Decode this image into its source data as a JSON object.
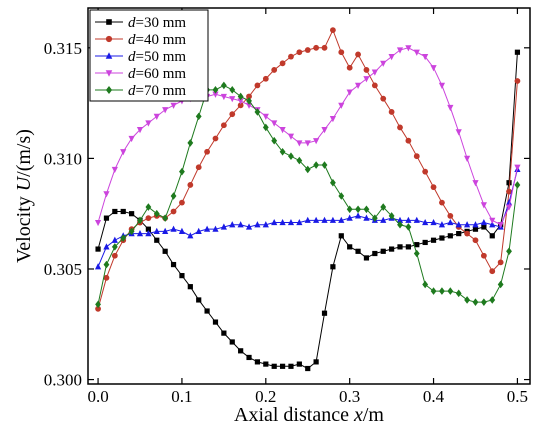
{
  "chart_data": {
    "type": "line",
    "title": "",
    "xlabel": {
      "pre": "Axial distance ",
      "var": "x",
      "post": "/m"
    },
    "ylabel": {
      "pre": "Velocity ",
      "var": "U",
      "post": "/(m/s)"
    },
    "xlim": [
      -0.012,
      0.515
    ],
    "ylim": [
      0.2998,
      0.3168
    ],
    "xticks": [
      0.0,
      0.1,
      0.2,
      0.3,
      0.4,
      0.5
    ],
    "xtick_labels": [
      "0.0",
      "0.1",
      "0.2",
      "0.3",
      "0.4",
      "0.5"
    ],
    "yticks": [
      0.3,
      0.305,
      0.31,
      0.315
    ],
    "ytick_labels": [
      "0.300",
      "0.305",
      "0.310",
      "0.315"
    ],
    "grid": false,
    "legend_position": "top-left",
    "series": [
      {
        "name": {
          "var": "d",
          "rest": "=30 mm"
        },
        "color": "#000000",
        "marker": "square",
        "x": [
          0.0,
          0.01,
          0.02,
          0.03,
          0.04,
          0.05,
          0.06,
          0.07,
          0.08,
          0.09,
          0.1,
          0.11,
          0.12,
          0.13,
          0.14,
          0.15,
          0.16,
          0.17,
          0.18,
          0.19,
          0.2,
          0.21,
          0.22,
          0.23,
          0.24,
          0.25,
          0.26,
          0.27,
          0.28,
          0.29,
          0.3,
          0.31,
          0.32,
          0.33,
          0.34,
          0.35,
          0.36,
          0.37,
          0.38,
          0.39,
          0.4,
          0.41,
          0.42,
          0.43,
          0.44,
          0.45,
          0.46,
          0.47,
          0.48,
          0.49,
          0.5
        ],
        "y": [
          0.3059,
          0.3073,
          0.3076,
          0.3076,
          0.3075,
          0.3072,
          0.3068,
          0.3063,
          0.3058,
          0.3052,
          0.3047,
          0.3042,
          0.3036,
          0.3031,
          0.3026,
          0.3021,
          0.3017,
          0.3013,
          0.301,
          0.3008,
          0.3007,
          0.3006,
          0.3006,
          0.3006,
          0.3007,
          0.3005,
          0.3008,
          0.303,
          0.3051,
          0.3065,
          0.306,
          0.3058,
          0.3055,
          0.3057,
          0.3058,
          0.3059,
          0.306,
          0.306,
          0.3061,
          0.3062,
          0.3063,
          0.3064,
          0.3065,
          0.3066,
          0.3067,
          0.3068,
          0.3069,
          0.3065,
          0.307,
          0.3089,
          0.3148
        ]
      },
      {
        "name": {
          "var": "d",
          "rest": "=40 mm"
        },
        "color": "#c0392b",
        "marker": "circle",
        "x": [
          0.0,
          0.01,
          0.02,
          0.03,
          0.04,
          0.05,
          0.06,
          0.07,
          0.08,
          0.09,
          0.1,
          0.11,
          0.12,
          0.13,
          0.14,
          0.15,
          0.16,
          0.17,
          0.18,
          0.19,
          0.2,
          0.21,
          0.22,
          0.23,
          0.24,
          0.25,
          0.26,
          0.27,
          0.28,
          0.29,
          0.3,
          0.31,
          0.32,
          0.33,
          0.34,
          0.35,
          0.36,
          0.37,
          0.38,
          0.39,
          0.4,
          0.41,
          0.42,
          0.43,
          0.44,
          0.45,
          0.46,
          0.47,
          0.48,
          0.49,
          0.5
        ],
        "y": [
          0.3032,
          0.3046,
          0.3056,
          0.3063,
          0.3068,
          0.3071,
          0.3073,
          0.3074,
          0.3073,
          0.3076,
          0.308,
          0.3088,
          0.3096,
          0.3103,
          0.3109,
          0.3115,
          0.312,
          0.3124,
          0.3128,
          0.3133,
          0.3136,
          0.314,
          0.3143,
          0.3146,
          0.3148,
          0.3149,
          0.315,
          0.315,
          0.3158,
          0.3148,
          0.3141,
          0.3147,
          0.314,
          0.3133,
          0.3127,
          0.3121,
          0.3114,
          0.3108,
          0.3101,
          0.3094,
          0.3087,
          0.308,
          0.3074,
          0.3069,
          0.3066,
          0.3063,
          0.3056,
          0.3049,
          0.3053,
          0.3085,
          0.3135
        ]
      },
      {
        "name": {
          "var": "d",
          "rest": "=50 mm"
        },
        "color": "#1a1ae6",
        "marker": "triangle-up",
        "x": [
          0.0,
          0.01,
          0.02,
          0.03,
          0.04,
          0.05,
          0.06,
          0.07,
          0.08,
          0.09,
          0.1,
          0.11,
          0.12,
          0.13,
          0.14,
          0.15,
          0.16,
          0.17,
          0.18,
          0.19,
          0.2,
          0.21,
          0.22,
          0.23,
          0.24,
          0.25,
          0.26,
          0.27,
          0.28,
          0.29,
          0.3,
          0.31,
          0.32,
          0.33,
          0.34,
          0.35,
          0.36,
          0.37,
          0.38,
          0.39,
          0.4,
          0.41,
          0.42,
          0.43,
          0.44,
          0.45,
          0.46,
          0.47,
          0.48,
          0.49,
          0.5
        ],
        "y": [
          0.3051,
          0.306,
          0.3063,
          0.3065,
          0.3066,
          0.3066,
          0.3066,
          0.3067,
          0.3067,
          0.3068,
          0.3067,
          0.3065,
          0.3067,
          0.3068,
          0.3068,
          0.3069,
          0.307,
          0.307,
          0.3069,
          0.307,
          0.307,
          0.3071,
          0.3071,
          0.3071,
          0.3071,
          0.3072,
          0.3072,
          0.3072,
          0.3072,
          0.3072,
          0.3073,
          0.3074,
          0.3073,
          0.3072,
          0.3072,
          0.3073,
          0.3072,
          0.3072,
          0.3072,
          0.3071,
          0.3071,
          0.307,
          0.3071,
          0.307,
          0.307,
          0.307,
          0.3071,
          0.307,
          0.3069,
          0.308,
          0.3095
        ]
      },
      {
        "name": {
          "var": "d",
          "rest": "=60 mm"
        },
        "color": "#cc44dd",
        "marker": "triangle-down",
        "x": [
          0.0,
          0.01,
          0.02,
          0.03,
          0.04,
          0.05,
          0.06,
          0.07,
          0.08,
          0.09,
          0.1,
          0.11,
          0.12,
          0.13,
          0.14,
          0.15,
          0.16,
          0.17,
          0.18,
          0.19,
          0.2,
          0.21,
          0.22,
          0.23,
          0.24,
          0.25,
          0.26,
          0.27,
          0.28,
          0.29,
          0.3,
          0.31,
          0.32,
          0.33,
          0.34,
          0.35,
          0.36,
          0.37,
          0.38,
          0.39,
          0.4,
          0.41,
          0.42,
          0.43,
          0.44,
          0.45,
          0.46,
          0.47,
          0.48,
          0.49,
          0.5
        ],
        "y": [
          0.3071,
          0.3084,
          0.3095,
          0.3103,
          0.3109,
          0.3113,
          0.3116,
          0.3119,
          0.3122,
          0.3124,
          0.3126,
          0.3127,
          0.3128,
          0.3128,
          0.3129,
          0.3128,
          0.3127,
          0.3126,
          0.3124,
          0.3122,
          0.3119,
          0.3116,
          0.3113,
          0.311,
          0.3107,
          0.3107,
          0.3108,
          0.3113,
          0.3118,
          0.3124,
          0.313,
          0.3133,
          0.3136,
          0.3139,
          0.3143,
          0.3146,
          0.3149,
          0.315,
          0.3148,
          0.3146,
          0.3141,
          0.3133,
          0.3123,
          0.3112,
          0.31,
          0.3089,
          0.3079,
          0.3072,
          0.307,
          0.3078,
          0.3096
        ]
      },
      {
        "name": {
          "var": "d",
          "rest": "=70 mm"
        },
        "color": "#1e7a1e",
        "marker": "diamond",
        "x": [
          0.0,
          0.01,
          0.02,
          0.03,
          0.04,
          0.05,
          0.06,
          0.07,
          0.08,
          0.09,
          0.1,
          0.11,
          0.12,
          0.13,
          0.14,
          0.15,
          0.16,
          0.17,
          0.18,
          0.19,
          0.2,
          0.21,
          0.22,
          0.23,
          0.24,
          0.25,
          0.26,
          0.27,
          0.28,
          0.29,
          0.3,
          0.31,
          0.32,
          0.33,
          0.34,
          0.35,
          0.36,
          0.37,
          0.38,
          0.39,
          0.4,
          0.41,
          0.42,
          0.43,
          0.44,
          0.45,
          0.46,
          0.47,
          0.48,
          0.49,
          0.5
        ],
        "y": [
          0.3034,
          0.3052,
          0.306,
          0.3064,
          0.3067,
          0.3072,
          0.3078,
          0.3075,
          0.3073,
          0.3083,
          0.3094,
          0.3107,
          0.3119,
          0.3131,
          0.3131,
          0.3133,
          0.3131,
          0.3128,
          0.3126,
          0.3121,
          0.3114,
          0.3108,
          0.3103,
          0.3101,
          0.3099,
          0.3095,
          0.3097,
          0.3097,
          0.3089,
          0.3083,
          0.3077,
          0.3077,
          0.3077,
          0.3073,
          0.3078,
          0.3074,
          0.307,
          0.3069,
          0.3057,
          0.3043,
          0.304,
          0.304,
          0.304,
          0.3039,
          0.3036,
          0.3035,
          0.3035,
          0.3036,
          0.3043,
          0.3058,
          0.3088
        ]
      }
    ]
  }
}
